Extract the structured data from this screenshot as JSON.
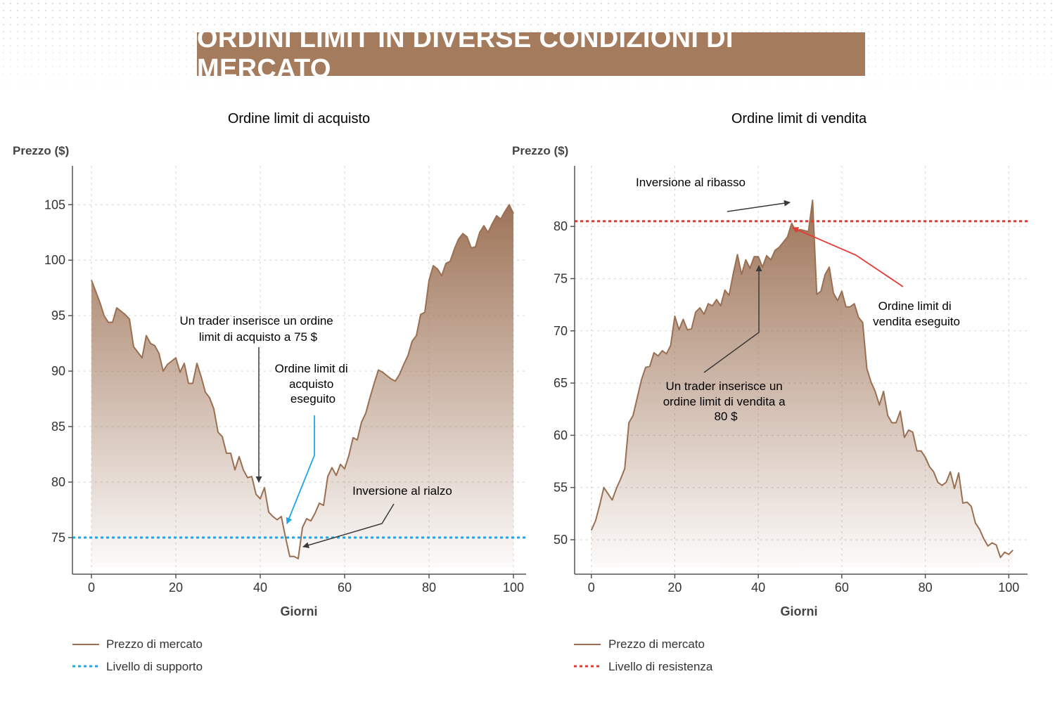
{
  "title": "ORDINI LIMIT IN DIVERSE CONDIZIONI DI MERCATO",
  "colors": {
    "banner": "#a57b5e",
    "price_line": "#9a6f52",
    "area_top": "#9e7458",
    "support": "#1ea7e6",
    "resistance": "#e53935",
    "axis": "#555555",
    "grid": "#d5d5d5"
  },
  "chart_data": [
    {
      "type": "area",
      "title": "Ordine limit di acquisto",
      "xlabel": "Giorni",
      "ylabel": "Prezzo ($)",
      "xlim": [
        -4.5,
        103
      ],
      "ylim": [
        71.7,
        108.5
      ],
      "xticks": [
        0,
        20,
        40,
        60,
        80,
        100
      ],
      "yticks": [
        75,
        80,
        85,
        90,
        95,
        100,
        105
      ],
      "x_start": 0,
      "series": [
        {
          "name": "Prezzo di mercato",
          "values": [
            98.2,
            97.2,
            96.2,
            95.0,
            94.4,
            94.4,
            95.7,
            95.4,
            95.1,
            94.7,
            92.2,
            91.7,
            91.2,
            93.2,
            92.5,
            92.3,
            91.6,
            90.0,
            90.6,
            90.9,
            91.2,
            89.9,
            90.7,
            88.9,
            88.9,
            90.7,
            89.5,
            88.1,
            87.6,
            86.6,
            84.5,
            84.1,
            82.6,
            82.6,
            81.1,
            82.3,
            81.1,
            80.4,
            80.5,
            78.9,
            78.5,
            79.5,
            77.3,
            76.9,
            76.6,
            76.9,
            75.0,
            73.3,
            73.3,
            73.1,
            75.9,
            76.7,
            76.5,
            77.2,
            78.1,
            77.9,
            80.5,
            81.3,
            80.6,
            81.6,
            81.2,
            82.4,
            84.0,
            83.8,
            85.4,
            86.2,
            87.6,
            88.9,
            90.1,
            89.9,
            89.6,
            89.3,
            89.1,
            89.7,
            90.6,
            91.4,
            92.7,
            93.2,
            95.1,
            95.3,
            98.2,
            99.5,
            99.2,
            98.6,
            99.7,
            99.9,
            101.0,
            101.9,
            102.4,
            102.1,
            101.1,
            101.2,
            102.5,
            103.1,
            102.5,
            103.3,
            104.0,
            103.7,
            104.4,
            105.0,
            104.2
          ]
        },
        {
          "name": "Livello di supporto",
          "value": 75,
          "style": "dotted"
        }
      ],
      "annotations": [
        {
          "text": "Un trader inserisce un ordine limit di acquisto a 75 $",
          "lines": [
            "Un trader inserisce un ordine",
            "limit di acquisto a 75 $"
          ],
          "target": [
            40,
            79.5
          ]
        },
        {
          "text": "Ordine limit di acquisto eseguito",
          "lines": [
            "Ordine limit di",
            "acquisto",
            "eseguito"
          ],
          "target": [
            46.5,
            75.8
          ]
        },
        {
          "text": "Inversione al rialzo",
          "lines": [
            "Inversione al rialzo"
          ],
          "target": [
            50,
            73.1
          ]
        }
      ],
      "legend": [
        {
          "label": "Prezzo di mercato",
          "style": "solid"
        },
        {
          "label": "Livello di supporto",
          "style": "dotted"
        }
      ]
    },
    {
      "type": "area",
      "title": "Ordine limit di vendita",
      "xlabel": "Giorni",
      "ylabel": "Prezzo ($)",
      "xlim": [
        -4,
        104.5
      ],
      "ylim": [
        46.7,
        85.8
      ],
      "xticks": [
        0,
        20,
        40,
        60,
        80,
        100
      ],
      "yticks": [
        50,
        55,
        60,
        65,
        70,
        75,
        80
      ],
      "x_start": 0,
      "series": [
        {
          "name": "Prezzo di mercato",
          "values": [
            50.9,
            51.8,
            53.3,
            55.0,
            54.4,
            53.8,
            54.9,
            55.8,
            56.8,
            61.2,
            61.9,
            63.6,
            65.3,
            66.5,
            66.6,
            67.9,
            67.6,
            68.1,
            67.8,
            68.6,
            71.4,
            70.1,
            71.1,
            70.1,
            70.2,
            71.8,
            72.2,
            71.6,
            72.6,
            72.4,
            73.0,
            72.4,
            73.9,
            73.4,
            75.5,
            77.3,
            75.4,
            76.8,
            76.0,
            77.1,
            77.1,
            76.1,
            77.2,
            76.8,
            77.7,
            78.0,
            78.5,
            79.0,
            80.3,
            79.5,
            79.7,
            79.6,
            79.5,
            82.5,
            73.5,
            73.8,
            75.4,
            76.1,
            73.6,
            72.9,
            73.8,
            72.3,
            72.3,
            72.6,
            71.3,
            70.8,
            66.4,
            65.1,
            64.2,
            62.9,
            64.2,
            61.9,
            61.2,
            61.2,
            62.3,
            59.8,
            60.5,
            60.3,
            58.5,
            58.5,
            57.9,
            57.0,
            56.5,
            55.5,
            55.2,
            55.5,
            56.5,
            54.9,
            56.4,
            53.5,
            53.6,
            53.2,
            51.6,
            51.0,
            50.1,
            49.4,
            49.7,
            49.5,
            48.3,
            48.8,
            48.6,
            49.0
          ]
        },
        {
          "name": "Livello di resistenza",
          "value": 80.5,
          "style": "dotted"
        }
      ],
      "annotations": [
        {
          "text": "Inversione al ribasso",
          "lines": [
            "Inversione al ribasso"
          ],
          "target": [
            48,
            82.5
          ]
        },
        {
          "text": "Ordine limit di vendita eseguito",
          "lines": [
            "Ordine limit di",
            "vendita eseguito"
          ],
          "target": [
            48.2,
            80.1
          ]
        },
        {
          "text": "Un trader inserisce un ordine limit di vendita a 80 $",
          "lines": [
            "Un trader inserisce un",
            "ordine limit di vendita a",
            "80 $"
          ],
          "target": [
            40.2,
            77.3
          ]
        }
      ],
      "legend": [
        {
          "label": "Prezzo di mercato",
          "style": "solid"
        },
        {
          "label": "Livello di resistenza",
          "style": "dotted"
        }
      ]
    }
  ]
}
